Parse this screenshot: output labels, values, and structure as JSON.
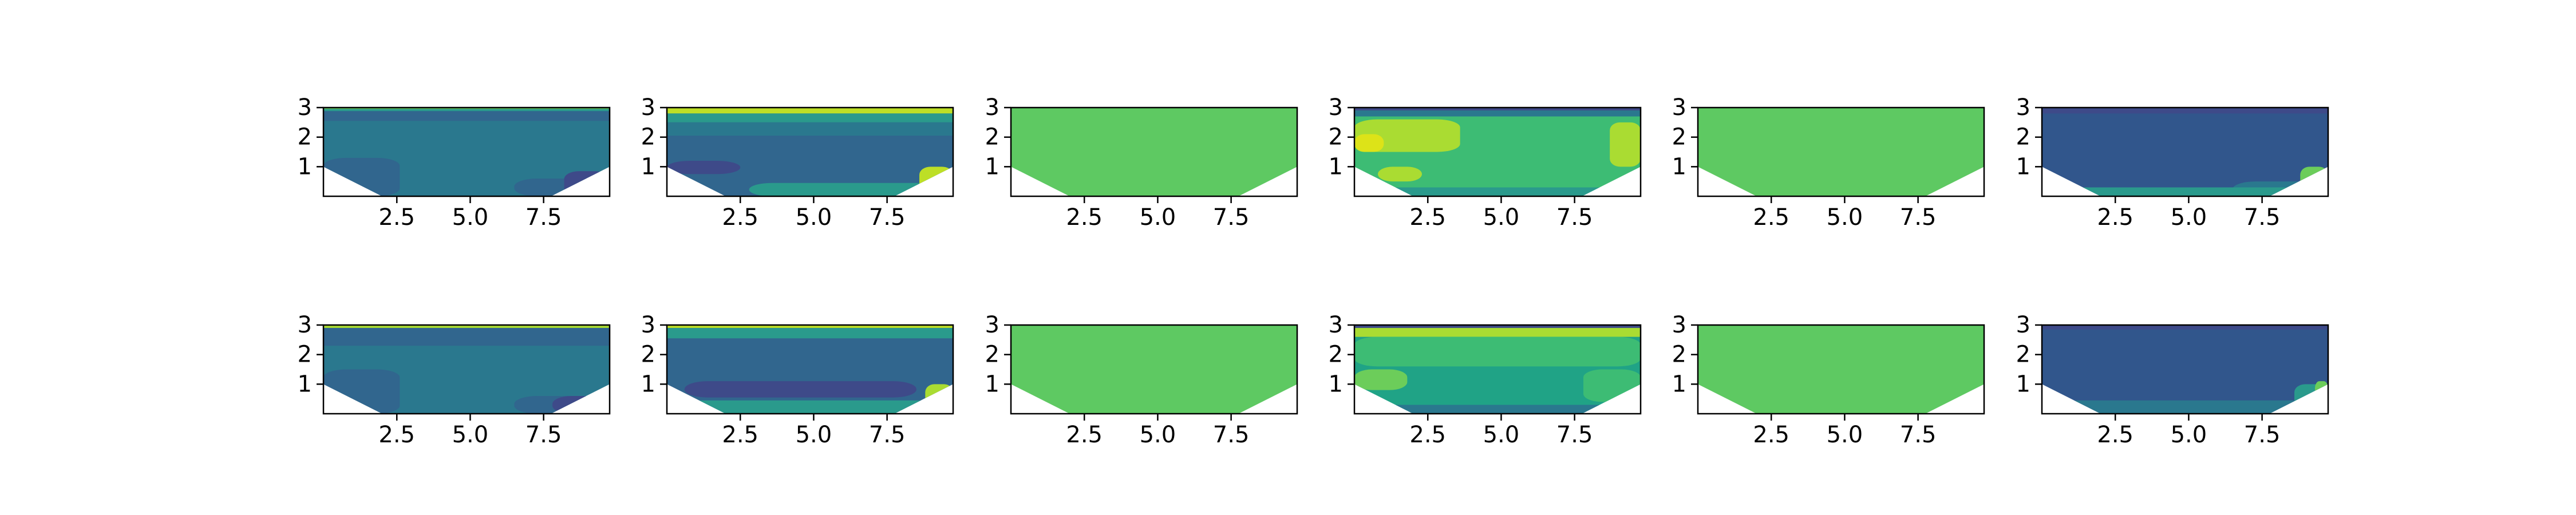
{
  "chart_data": [
    {
      "type": "contourf",
      "x": {
        "ticks": [
          2.5,
          5.0,
          7.5
        ],
        "tick_labels": [
          "2.5",
          "5.0",
          "7.5"
        ],
        "range": [
          0,
          9.75
        ]
      },
      "y": {
        "ticks": [
          1,
          2,
          3
        ],
        "tick_labels": [
          "1",
          "2",
          "3"
        ],
        "range": [
          0,
          3
        ]
      },
      "cross_section": [
        [
          0,
          1.0
        ],
        [
          2.0,
          0
        ],
        [
          7.75,
          0
        ],
        [
          9.75,
          1.0
        ]
      ],
      "base_color": "#2a788e",
      "bands": [
        {
          "color": "#6ccd5a",
          "top": 3.0,
          "bottom": 2.95
        },
        {
          "color": "#2a9a8c",
          "top": 2.95,
          "bottom": 2.88
        },
        {
          "color": "#31668e",
          "top": 2.88,
          "bottom": 2.55
        },
        {
          "color": "#31668e",
          "top": 1.3,
          "bottom": 0.0,
          "xstart": 0,
          "xend": 2.6
        },
        {
          "color": "#31668e",
          "top": 0.6,
          "bottom": 0.0,
          "xstart": 6.5,
          "xend": 9.75
        },
        {
          "color": "#3e4a89",
          "top": 0.85,
          "bottom": 0.0,
          "xstart": 8.2,
          "xend": 9.75
        }
      ]
    },
    {
      "type": "contourf",
      "x": {
        "ticks": [
          2.5,
          5.0,
          7.5
        ],
        "tick_labels": [
          "2.5",
          "5.0",
          "7.5"
        ],
        "range": [
          0,
          9.75
        ]
      },
      "y": {
        "ticks": [
          1,
          2,
          3
        ],
        "tick_labels": [
          "1",
          "2",
          "3"
        ],
        "range": [
          0,
          3
        ]
      },
      "cross_section": [
        [
          0,
          1.0
        ],
        [
          2.0,
          0
        ],
        [
          7.75,
          0
        ],
        [
          9.75,
          1.0
        ]
      ],
      "base_color": "#31668e",
      "bands": [
        {
          "color": "#bddf26",
          "top": 3.0,
          "bottom": 2.8
        },
        {
          "color": "#2a9a8c",
          "top": 2.8,
          "bottom": 2.5
        },
        {
          "color": "#2a788e",
          "top": 2.5,
          "bottom": 2.05
        },
        {
          "color": "#3e4a89",
          "top": 1.2,
          "bottom": 0.75,
          "xstart": 0,
          "xend": 2.5
        },
        {
          "color": "#2a9a8c",
          "top": 0.45,
          "bottom": 0.0,
          "xstart": 2.8,
          "xend": 9.75
        },
        {
          "color": "#bddf26",
          "top": 1.0,
          "bottom": 0.0,
          "xstart": 8.6,
          "xend": 9.75
        }
      ]
    },
    {
      "type": "contourf",
      "x": {
        "ticks": [
          2.5,
          5.0,
          7.5
        ],
        "tick_labels": [
          "2.5",
          "5.0",
          "7.5"
        ],
        "range": [
          0,
          9.75
        ]
      },
      "y": {
        "ticks": [
          1,
          2,
          3
        ],
        "tick_labels": [
          "1",
          "2",
          "3"
        ],
        "range": [
          0,
          3
        ]
      },
      "cross_section": [
        [
          0,
          1.0
        ],
        [
          2.0,
          0
        ],
        [
          7.75,
          0
        ],
        [
          9.75,
          1.0
        ]
      ],
      "base_color": "#5ec962",
      "bands": []
    },
    {
      "type": "contourf",
      "x": {
        "ticks": [
          2.5,
          5.0,
          7.5
        ],
        "tick_labels": [
          "2.5",
          "5.0",
          "7.5"
        ],
        "range": [
          0,
          9.75
        ]
      },
      "y": {
        "ticks": [
          1,
          2,
          3
        ],
        "tick_labels": [
          "1",
          "2",
          "3"
        ],
        "range": [
          0,
          3
        ]
      },
      "cross_section": [
        [
          0,
          1.0
        ],
        [
          2.0,
          0
        ],
        [
          7.75,
          0
        ],
        [
          9.75,
          1.0
        ]
      ],
      "base_color": "#3dbc74",
      "bands": [
        {
          "color": "#3e4a89",
          "top": 3.0,
          "bottom": 2.9
        },
        {
          "color": "#2a788e",
          "top": 2.9,
          "bottom": 2.7
        },
        {
          "color": "#aadc32",
          "top": 2.6,
          "bottom": 1.5,
          "xstart": 0,
          "xend": 3.6
        },
        {
          "color": "#dde318",
          "top": 2.1,
          "bottom": 1.5,
          "xstart": 0,
          "xend": 1.0
        },
        {
          "color": "#aadc32",
          "top": 1.0,
          "bottom": 0.5,
          "xstart": 0.8,
          "xend": 2.3
        },
        {
          "color": "#aadc32",
          "top": 2.5,
          "bottom": 1.0,
          "xstart": 8.7,
          "xend": 9.75
        },
        {
          "color": "#2a9a8c",
          "top": 0.3,
          "bottom": 0.0,
          "xstart": 0,
          "xend": 9.75
        }
      ]
    },
    {
      "type": "contourf",
      "x": {
        "ticks": [
          2.5,
          5.0,
          7.5
        ],
        "tick_labels": [
          "2.5",
          "5.0",
          "7.5"
        ],
        "range": [
          0,
          9.75
        ]
      },
      "y": {
        "ticks": [
          1,
          2,
          3
        ],
        "tick_labels": [
          "1",
          "2",
          "3"
        ],
        "range": [
          0,
          3
        ]
      },
      "cross_section": [
        [
          0,
          1.0
        ],
        [
          2.0,
          0
        ],
        [
          7.75,
          0
        ],
        [
          9.75,
          1.0
        ]
      ],
      "base_color": "#5ec962",
      "bands": []
    },
    {
      "type": "contourf",
      "x": {
        "ticks": [
          2.5,
          5.0,
          7.5
        ],
        "tick_labels": [
          "2.5",
          "5.0",
          "7.5"
        ],
        "range": [
          0,
          9.75
        ]
      },
      "y": {
        "ticks": [
          1,
          2,
          3
        ],
        "tick_labels": [
          "1",
          "2",
          "3"
        ],
        "range": [
          0,
          3
        ]
      },
      "cross_section": [
        [
          0,
          1.0
        ],
        [
          2.0,
          0
        ],
        [
          7.75,
          0
        ],
        [
          9.75,
          1.0
        ]
      ],
      "base_color": "#31568c",
      "bands": [
        {
          "color": "#3e4a89",
          "top": 3.0,
          "bottom": 2.8
        },
        {
          "color": "#2a788e",
          "top": 0.5,
          "bottom": 0.0,
          "xstart": 6.5,
          "xend": 9.75
        },
        {
          "color": "#2a9a8c",
          "top": 0.3,
          "bottom": 0.0,
          "xstart": 0,
          "xend": 9.75
        },
        {
          "color": "#6ccd5a",
          "top": 1.0,
          "bottom": 0.0,
          "xstart": 8.8,
          "xend": 9.75
        }
      ]
    },
    {
      "type": "contourf",
      "x": {
        "ticks": [
          2.5,
          5.0,
          7.5
        ],
        "tick_labels": [
          "2.5",
          "5.0",
          "7.5"
        ],
        "range": [
          0,
          9.75
        ]
      },
      "y": {
        "ticks": [
          1,
          2,
          3
        ],
        "tick_labels": [
          "1",
          "2",
          "3"
        ],
        "range": [
          0,
          3
        ]
      },
      "cross_section": [
        [
          0,
          1.0
        ],
        [
          2.0,
          0
        ],
        [
          7.75,
          0
        ],
        [
          9.75,
          1.0
        ]
      ],
      "base_color": "#2a788e",
      "bands": [
        {
          "color": "#aadc32",
          "top": 3.0,
          "bottom": 2.9
        },
        {
          "color": "#31668e",
          "top": 2.9,
          "bottom": 2.3
        },
        {
          "color": "#31668e",
          "top": 1.5,
          "bottom": 0.0,
          "xstart": 0,
          "xend": 2.6
        },
        {
          "color": "#31668e",
          "top": 0.6,
          "bottom": 0.0,
          "xstart": 6.5,
          "xend": 9.75
        },
        {
          "color": "#3e4a89",
          "top": 0.6,
          "bottom": 0.0,
          "xstart": 7.8,
          "xend": 9.75
        }
      ]
    },
    {
      "type": "contourf",
      "x": {
        "ticks": [
          2.5,
          5.0,
          7.5
        ],
        "tick_labels": [
          "2.5",
          "5.0",
          "7.5"
        ],
        "range": [
          0,
          9.75
        ]
      },
      "y": {
        "ticks": [
          1,
          2,
          3
        ],
        "tick_labels": [
          "1",
          "2",
          "3"
        ],
        "range": [
          0,
          3
        ]
      },
      "cross_section": [
        [
          0,
          1.0
        ],
        [
          2.0,
          0
        ],
        [
          7.75,
          0
        ],
        [
          9.75,
          1.0
        ]
      ],
      "base_color": "#31668e",
      "bands": [
        {
          "color": "#bddf26",
          "top": 3.0,
          "bottom": 2.9
        },
        {
          "color": "#2a9a8c",
          "top": 2.9,
          "bottom": 2.55
        },
        {
          "color": "#3e4a89",
          "top": 1.1,
          "bottom": 0.55,
          "xstart": 0.6,
          "xend": 8.5
        },
        {
          "color": "#2a9a8c",
          "top": 0.45,
          "bottom": 0.0,
          "xstart": 0,
          "xend": 9.75
        },
        {
          "color": "#aadc32",
          "top": 1.0,
          "bottom": 0.0,
          "xstart": 8.8,
          "xend": 9.75
        }
      ]
    },
    {
      "type": "contourf",
      "x": {
        "ticks": [
          2.5,
          5.0,
          7.5
        ],
        "tick_labels": [
          "2.5",
          "5.0",
          "7.5"
        ],
        "range": [
          0,
          9.75
        ]
      },
      "y": {
        "ticks": [
          1,
          2,
          3
        ],
        "tick_labels": [
          "1",
          "2",
          "3"
        ],
        "range": [
          0,
          3
        ]
      },
      "cross_section": [
        [
          0,
          1.0
        ],
        [
          2.0,
          0
        ],
        [
          7.75,
          0
        ],
        [
          9.75,
          1.0
        ]
      ],
      "base_color": "#5ec962",
      "bands": []
    },
    {
      "type": "contourf",
      "x": {
        "ticks": [
          2.5,
          5.0,
          7.5
        ],
        "tick_labels": [
          "2.5",
          "5.0",
          "7.5"
        ],
        "range": [
          0,
          9.75
        ]
      },
      "y": {
        "ticks": [
          1,
          2,
          3
        ],
        "tick_labels": [
          "1",
          "2",
          "3"
        ],
        "range": [
          0,
          3
        ]
      },
      "cross_section": [
        [
          0,
          1.0
        ],
        [
          2.0,
          0
        ],
        [
          7.75,
          0
        ],
        [
          9.75,
          1.0
        ]
      ],
      "base_color": "#20a386",
      "bands": [
        {
          "color": "#3e4a89",
          "top": 3.0,
          "bottom": 2.9
        },
        {
          "color": "#aadc32",
          "top": 2.9,
          "bottom": 2.6
        },
        {
          "color": "#3dbc74",
          "top": 2.6,
          "bottom": 1.6,
          "xstart": 0,
          "xend": 9.75
        },
        {
          "color": "#6ccd5a",
          "top": 1.5,
          "bottom": 0.8,
          "xstart": 0,
          "xend": 1.8
        },
        {
          "color": "#3dbc74",
          "top": 1.5,
          "bottom": 0.4,
          "xstart": 7.8,
          "xend": 9.75
        },
        {
          "color": "#2a788e",
          "top": 0.3,
          "bottom": 0.0,
          "xstart": 0,
          "xend": 9.75
        }
      ]
    },
    {
      "type": "contourf",
      "x": {
        "ticks": [
          2.5,
          5.0,
          7.5
        ],
        "tick_labels": [
          "2.5",
          "5.0",
          "7.5"
        ],
        "range": [
          0,
          9.75
        ]
      },
      "y": {
        "ticks": [
          1,
          2,
          3
        ],
        "tick_labels": [
          "1",
          "2",
          "3"
        ],
        "range": [
          0,
          3
        ]
      },
      "cross_section": [
        [
          0,
          1.0
        ],
        [
          2.0,
          0
        ],
        [
          7.75,
          0
        ],
        [
          9.75,
          1.0
        ]
      ],
      "base_color": "#5ec962",
      "bands": []
    },
    {
      "type": "contourf",
      "x": {
        "ticks": [
          2.5,
          5.0,
          7.5
        ],
        "tick_labels": [
          "2.5",
          "5.0",
          "7.5"
        ],
        "range": [
          0,
          9.75
        ]
      },
      "y": {
        "ticks": [
          1,
          2,
          3
        ],
        "tick_labels": [
          "1",
          "2",
          "3"
        ],
        "range": [
          0,
          3
        ]
      },
      "cross_section": [
        [
          0,
          1.0
        ],
        [
          2.0,
          0
        ],
        [
          7.75,
          0
        ],
        [
          9.75,
          1.0
        ]
      ],
      "base_color": "#31568c",
      "bands": [
        {
          "color": "#3e4a89",
          "top": 3.0,
          "bottom": 2.85
        },
        {
          "color": "#2a788e",
          "top": 0.45,
          "bottom": 0.0,
          "xstart": 0,
          "xend": 9.75
        },
        {
          "color": "#2a9a8c",
          "top": 1.0,
          "bottom": 0.2,
          "xstart": 8.6,
          "xend": 9.75
        },
        {
          "color": "#6ccd5a",
          "top": 1.1,
          "bottom": 0.6,
          "xstart": 9.3,
          "xend": 9.75
        }
      ]
    }
  ]
}
